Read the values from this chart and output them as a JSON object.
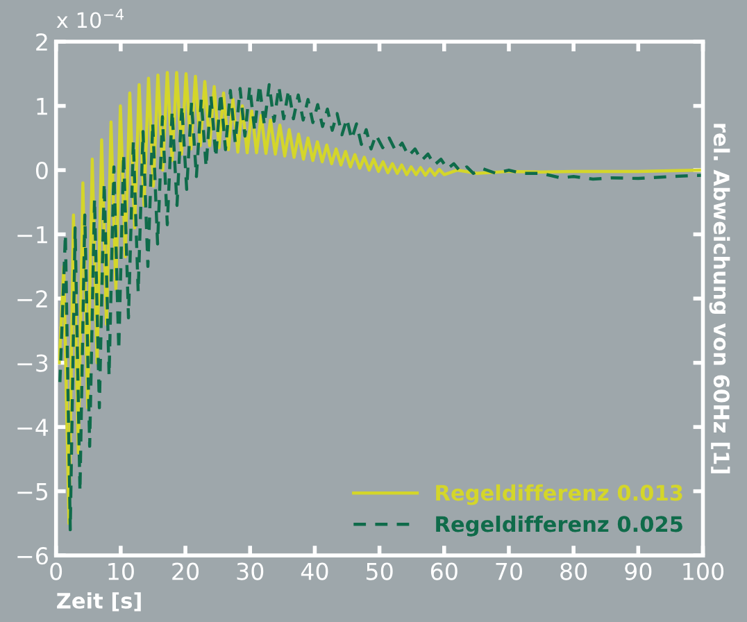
{
  "chart_data": {
    "type": "line",
    "xlabel": "Zeit [s]",
    "ylabel": "rel. Abweichung von 60Hz [1]",
    "annotations": [
      "x 10$^{−4}$"
    ],
    "xlim": [
      0,
      100
    ],
    "xticks": [
      0,
      10,
      20,
      30,
      40,
      50,
      60,
      70,
      80,
      90,
      100
    ],
    "ylim": [
      -6,
      2
    ],
    "yticks": [
      -6,
      -5,
      -4,
      -3,
      -2,
      -1,
      0,
      1,
      2
    ],
    "grid": false,
    "legend": "bottom right",
    "series": [
      {
        "name": "Regeldifferenz 0.013",
        "color": "#d4d62a",
        "line_style": "solid",
        "x": [
          0.5,
          1.2,
          2.0,
          2.7,
          3.45,
          4.15,
          4.9,
          5.6,
          6.35,
          7.05,
          7.8,
          8.5,
          9.25,
          9.95,
          10.7,
          11.4,
          12.15,
          12.85,
          13.6,
          14.3,
          15.05,
          15.75,
          16.5,
          17.2,
          17.95,
          18.65,
          19.4,
          20.1,
          20.85,
          21.55,
          22.3,
          23.0,
          23.75,
          24.45,
          25.2,
          25.9,
          26.65,
          27.35,
          28.1,
          28.8,
          29.55,
          30.25,
          31.0,
          31.7,
          32.45,
          33.15,
          33.9,
          34.6,
          35.35,
          36.05,
          36.8,
          37.5,
          38.25,
          38.95,
          39.7,
          40.4,
          41.15,
          41.85,
          42.6,
          43.3,
          44.05,
          44.75,
          45.5,
          46.2,
          46.95,
          47.65,
          48.4,
          49.1,
          49.85,
          50.55,
          51.3,
          52,
          52.75,
          53.45,
          54.2,
          54.9,
          55.65,
          56.35,
          57.1,
          57.8,
          58.55,
          59.25,
          60,
          62,
          65,
          70,
          75,
          80,
          85,
          90,
          95,
          100
        ],
        "values": [
          -3.0,
          -1.5,
          -5.5,
          -0.7,
          -4.4,
          -0.2,
          -3.7,
          0.17,
          -3.0,
          0.47,
          -2.4,
          0.75,
          -1.85,
          1.0,
          -1.35,
          1.2,
          -0.9,
          1.33,
          -0.55,
          1.43,
          -0.25,
          1.48,
          0.0,
          1.52,
          0.15,
          1.52,
          0.25,
          1.5,
          0.33,
          1.46,
          0.38,
          1.38,
          0.38,
          1.3,
          0.35,
          1.2,
          0.32,
          1.1,
          0.28,
          1.0,
          0.27,
          0.92,
          0.27,
          0.85,
          0.26,
          0.78,
          0.25,
          0.7,
          0.22,
          0.63,
          0.2,
          0.56,
          0.17,
          0.5,
          0.15,
          0.44,
          0.13,
          0.39,
          0.1,
          0.33,
          0.08,
          0.29,
          0.05,
          0.24,
          0.03,
          0.2,
          0.0,
          0.17,
          -0.02,
          0.13,
          -0.04,
          0.1,
          -0.05,
          0.08,
          -0.07,
          0.05,
          -0.07,
          0.04,
          -0.08,
          0.02,
          -0.08,
          0.01,
          -0.07,
          0.0,
          -0.05,
          -0.02,
          -0.03,
          -0.02,
          -0.02,
          -0.02,
          -0.01,
          0.0
        ]
      },
      {
        "name": "Regeldifferenz 0.025",
        "color": "#0f6b4a",
        "line_style": "dashed",
        "x": [
          0.6,
          1.45,
          2.2,
          2.95,
          3.7,
          4.45,
          5.2,
          5.95,
          6.7,
          7.45,
          8.2,
          8.95,
          9.7,
          10.45,
          11.2,
          11.95,
          12.7,
          13.45,
          14.2,
          14.95,
          15.7,
          16.45,
          17.2,
          17.95,
          18.7,
          19.45,
          20.2,
          20.95,
          21.7,
          22.45,
          23.2,
          23.95,
          24.7,
          25.45,
          26.2,
          26.95,
          27.7,
          28.45,
          29.2,
          29.95,
          30.7,
          31.45,
          32.2,
          32.95,
          33.7,
          34.45,
          35.2,
          35.95,
          36.7,
          37.45,
          38.2,
          38.95,
          39.7,
          40.45,
          41.2,
          41.95,
          42.7,
          43.45,
          44.2,
          44.95,
          45.7,
          46.45,
          47.2,
          47.95,
          48.7,
          49.45,
          50.5,
          51.5,
          52.5,
          53.5,
          54.5,
          55.5,
          56.5,
          57.5,
          58.5,
          59.5,
          60.5,
          61.5,
          62.5,
          63.5,
          64.5,
          66,
          68,
          70,
          72,
          75,
          78,
          80,
          83,
          86,
          90,
          95,
          100
        ],
        "values": [
          -3.3,
          -1.0,
          -5.6,
          -0.9,
          -5.0,
          -0.7,
          -4.3,
          -0.45,
          -3.7,
          -0.2,
          -3.2,
          0.05,
          -2.8,
          0.25,
          -2.3,
          0.45,
          -1.9,
          0.6,
          -1.5,
          0.73,
          -1.15,
          0.83,
          -0.85,
          0.92,
          -0.55,
          1.0,
          -0.3,
          1.05,
          -0.1,
          1.1,
          0.05,
          1.15,
          0.2,
          1.2,
          0.32,
          1.24,
          0.43,
          1.27,
          0.53,
          1.3,
          0.62,
          1.33,
          0.7,
          1.33,
          0.76,
          1.3,
          0.8,
          1.25,
          0.8,
          1.17,
          0.78,
          1.1,
          0.74,
          1.02,
          0.68,
          0.95,
          0.62,
          0.88,
          0.55,
          0.8,
          0.48,
          0.72,
          0.4,
          0.63,
          0.33,
          0.55,
          0.35,
          0.5,
          0.3,
          0.42,
          0.22,
          0.33,
          0.15,
          0.25,
          0.08,
          0.17,
          0.02,
          0.1,
          -0.02,
          0.05,
          -0.05,
          0.02,
          -0.05,
          0.0,
          -0.05,
          -0.05,
          -0.12,
          -0.1,
          -0.14,
          -0.12,
          -0.13,
          -0.1,
          -0.08
        ]
      }
    ]
  }
}
